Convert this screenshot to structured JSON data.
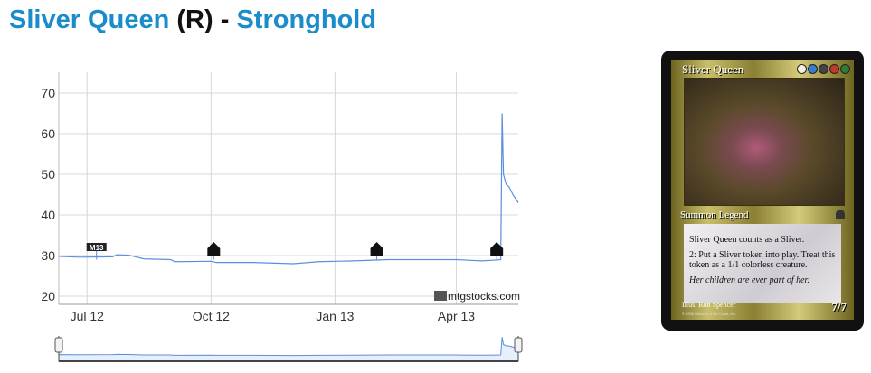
{
  "header": {
    "card_name": "Sliver Queen",
    "rarity": "(R)",
    "separator": "-",
    "set_name": "Stronghold"
  },
  "chart_data": {
    "type": "line",
    "title": "",
    "xlabel": "",
    "ylabel": "",
    "ylim": [
      18,
      75
    ],
    "xlim": [
      "2012-06-10",
      "2013-05-17"
    ],
    "yticks": [
      20,
      30,
      40,
      50,
      60,
      70
    ],
    "xticks": [
      {
        "date": "2012-07-01",
        "label": "Jul 12"
      },
      {
        "date": "2012-10-01",
        "label": "Oct 12"
      },
      {
        "date": "2013-01-01",
        "label": "Jan 13"
      },
      {
        "date": "2013-04-01",
        "label": "Apr 13"
      }
    ],
    "grid": true,
    "line_color": "#5b8ee0",
    "series": [
      {
        "points": [
          [
            "2012-06-10",
            29.8
          ],
          [
            "2012-06-25",
            29.6
          ],
          [
            "2012-07-20",
            29.7
          ],
          [
            "2012-07-23",
            30.2
          ],
          [
            "2012-08-01",
            30.1
          ],
          [
            "2012-08-12",
            29.2
          ],
          [
            "2012-09-01",
            29.0
          ],
          [
            "2012-09-04",
            28.5
          ],
          [
            "2012-10-01",
            28.6
          ],
          [
            "2012-10-05",
            28.3
          ],
          [
            "2012-11-01",
            28.3
          ],
          [
            "2012-12-01",
            28.0
          ],
          [
            "2012-12-20",
            28.5
          ],
          [
            "2013-01-15",
            28.7
          ],
          [
            "2013-02-10",
            29.0
          ],
          [
            "2013-03-10",
            29.0
          ],
          [
            "2013-04-01",
            29.0
          ],
          [
            "2013-04-20",
            28.7
          ],
          [
            "2013-05-01",
            28.9
          ],
          [
            "2013-05-04",
            29.0
          ],
          [
            "2013-05-05",
            65
          ],
          [
            "2013-05-06",
            50
          ],
          [
            "2013-05-08",
            47.5
          ],
          [
            "2013-05-10",
            47
          ],
          [
            "2013-05-13",
            45
          ],
          [
            "2013-05-17",
            43
          ]
        ]
      }
    ],
    "set_markers": [
      {
        "date": "2012-07-08",
        "icon": "m13-set-icon",
        "label": "M13"
      },
      {
        "date": "2012-10-03",
        "icon": "return-to-ravnica-set-icon"
      },
      {
        "date": "2013-02-01",
        "icon": "gatecrash-set-icon"
      },
      {
        "date": "2013-05-01",
        "icon": "dragons-maze-set-icon"
      }
    ],
    "watermark": "mtgstocks.com"
  },
  "card": {
    "name": "Sliver Queen",
    "mana_colors": [
      "#f4f1dc",
      "#3a7ad0",
      "#444444",
      "#c0392b",
      "#2e7d32"
    ],
    "type_line": "Summon Legend",
    "rules": [
      "Sliver Queen counts as a Sliver.",
      "2: Put a Sliver token into play. Treat this token as a 1/1 colorless creature."
    ],
    "flavor": "Her children are ever part of her.",
    "illustrator": "Illus. Ron Spencer",
    "copyright": "© 1998 Wizards of the Coast, Inc.",
    "power_toughness": "7/7"
  }
}
